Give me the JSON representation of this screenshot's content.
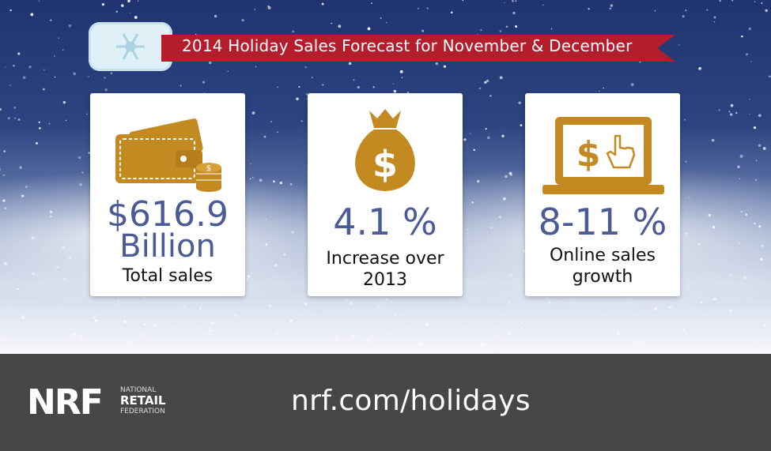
{
  "banner": {
    "title": "2014 Holiday Sales Forecast for November & December"
  },
  "cards": [
    {
      "value_line1": "$616.9",
      "value_line2": "Billion",
      "label_line1": "Total sales",
      "label_line2": "",
      "icon": "wallet-icon"
    },
    {
      "value_line1": "4.1 %",
      "value_line2": "",
      "label_line1": "Increase over",
      "label_line2": "2013",
      "icon": "money-bag-icon"
    },
    {
      "value_line1": "8-11 %",
      "value_line2": "",
      "label_line1": "Online sales",
      "label_line2": "growth",
      "icon": "laptop-dollar-icon"
    }
  ],
  "footer": {
    "logo_text": "NRF",
    "logo_sub1": "NATIONAL",
    "logo_sub2": "RETAIL",
    "logo_sub3": "FEDERATION",
    "url": "nrf.com/holidays"
  },
  "colors": {
    "accent_gold": "#c48a22",
    "value_blue": "#4b5b95",
    "ribbon_red": "#b31d2c",
    "footer_gray": "#474747"
  }
}
